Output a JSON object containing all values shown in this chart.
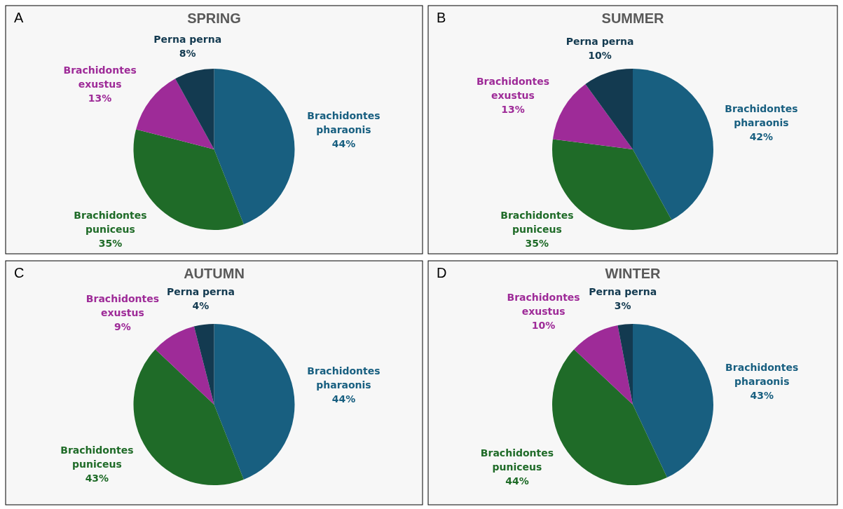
{
  "chart_data": [
    {
      "type": "pie",
      "title": "SPRING",
      "annotations": [
        "A"
      ],
      "categories": [
        "Brachidontes pharaonis",
        "Brachidontes puniceus",
        "Brachidontes exustus",
        "Perna perna"
      ],
      "values": [
        44,
        35,
        13,
        8
      ],
      "value_labels": [
        "44%",
        "35%",
        "13%",
        "8%"
      ],
      "colors": [
        "#185f80",
        "#1f6b28",
        "#9e2b98",
        "#133a50"
      ]
    },
    {
      "type": "pie",
      "title": "SUMMER",
      "annotations": [
        "B"
      ],
      "categories": [
        "Brachidontes pharaonis",
        "Brachidontes puniceus",
        "Brachidontes exustus",
        "Perna perna"
      ],
      "values": [
        42,
        35,
        13,
        10
      ],
      "value_labels": [
        "42%",
        "35%",
        "13%",
        "10%"
      ],
      "colors": [
        "#185f80",
        "#1f6b28",
        "#9e2b98",
        "#133a50"
      ]
    },
    {
      "type": "pie",
      "title": "AUTUMN",
      "annotations": [
        "C"
      ],
      "categories": [
        "Brachidontes pharaonis",
        "Brachidontes puniceus",
        "Brachidontes exustus",
        "Perna perna"
      ],
      "values": [
        44,
        43,
        9,
        4
      ],
      "value_labels": [
        "44%",
        "43%",
        "9%",
        "4%"
      ],
      "colors": [
        "#185f80",
        "#1f6b28",
        "#9e2b98",
        "#133a50"
      ]
    },
    {
      "type": "pie",
      "title": "WINTER",
      "annotations": [
        "D"
      ],
      "categories": [
        "Brachidontes pharaonis",
        "Brachidontes puniceus",
        "Brachidontes exustus",
        "Perna perna"
      ],
      "values": [
        43,
        44,
        10,
        3
      ],
      "value_labels": [
        "43%",
        "44%",
        "10%",
        "3%"
      ],
      "colors": [
        "#185f80",
        "#1f6b28",
        "#9e2b98",
        "#133a50"
      ]
    }
  ]
}
